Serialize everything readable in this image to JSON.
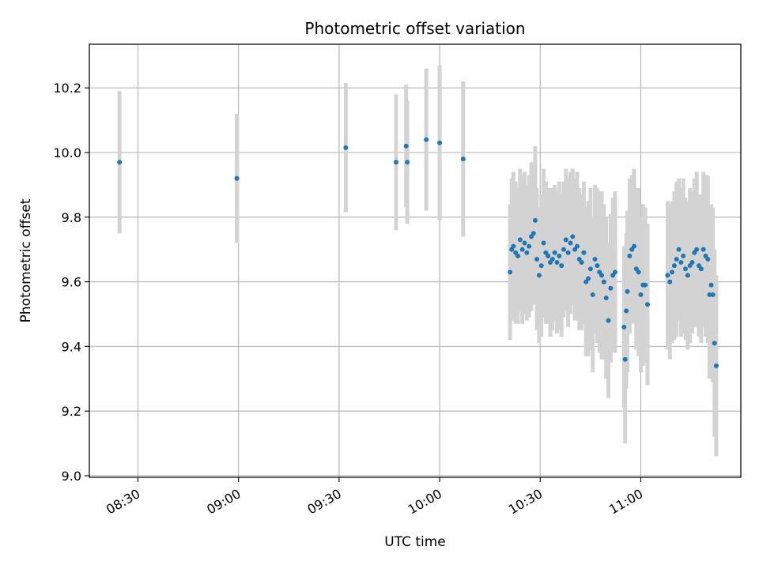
{
  "chart_data": {
    "type": "scatter",
    "title": "Photometric offset variation",
    "xlabel": "UTC time",
    "ylabel": "Photometric offset",
    "x_ticks": [
      "08:30",
      "09:00",
      "09:30",
      "10:00",
      "10:30",
      "11:00"
    ],
    "y_ticks": [
      "9.0",
      "9.2",
      "9.4",
      "9.6",
      "9.8",
      "10.0",
      "10.2"
    ],
    "xlim": [
      "08:15:30",
      "11:29:50"
    ],
    "ylim": [
      8.995,
      10.335
    ],
    "grid": true,
    "colors": {
      "points": "#1f77b4",
      "errorbars": "#d3d3d3",
      "grid": "#b0b0b0"
    },
    "series": [
      {
        "x": [
          "08:24:30",
          "08:59:30",
          "09:32:00",
          "09:47:00",
          "09:50:00",
          "09:50:20",
          "09:56:00",
          "10:00:00",
          "10:07:00",
          "10:21:00",
          "10:21:30",
          "10:22:00",
          "10:22:40",
          "10:23:20",
          "10:24:00",
          "10:24:40",
          "10:25:20",
          "10:26:00",
          "10:26:40",
          "10:27:20",
          "10:28:00",
          "10:28:30",
          "10:29:00",
          "10:29:40",
          "10:30:20",
          "10:31:00",
          "10:31:40",
          "10:32:20",
          "10:33:00",
          "10:33:40",
          "10:34:20",
          "10:35:00",
          "10:35:40",
          "10:36:20",
          "10:37:00",
          "10:37:40",
          "10:38:20",
          "10:39:00",
          "10:39:40",
          "10:40:20",
          "10:41:00",
          "10:41:40",
          "10:42:20",
          "10:43:00",
          "10:43:40",
          "10:44:20",
          "10:45:00",
          "10:45:40",
          "10:46:20",
          "10:47:00",
          "10:47:40",
          "10:48:20",
          "10:49:00",
          "10:49:40",
          "10:50:20",
          "10:51:00",
          "10:51:40",
          "10:52:20",
          "10:55:00",
          "10:55:20",
          "10:55:40",
          "10:56:00",
          "10:56:40",
          "10:57:20",
          "10:58:00",
          "10:58:40",
          "10:59:20",
          "11:00:00",
          "11:00:40",
          "11:01:20",
          "11:02:00",
          "11:08:00",
          "11:08:40",
          "11:09:20",
          "11:10:00",
          "11:10:40",
          "11:11:20",
          "11:12:00",
          "11:12:40",
          "11:13:20",
          "11:14:00",
          "11:14:40",
          "11:15:20",
          "11:16:00",
          "11:16:40",
          "11:17:20",
          "11:18:00",
          "11:18:40",
          "11:19:20",
          "11:20:00",
          "11:20:30",
          "11:21:00",
          "11:21:30",
          "11:22:00",
          "11:22:30"
        ],
        "y": [
          9.97,
          9.92,
          10.015,
          9.97,
          10.02,
          9.97,
          10.04,
          10.03,
          9.98,
          9.63,
          9.7,
          9.71,
          9.69,
          9.68,
          9.73,
          9.7,
          9.72,
          9.69,
          9.71,
          9.74,
          9.75,
          9.79,
          9.67,
          9.62,
          9.65,
          9.72,
          9.69,
          9.68,
          9.66,
          9.67,
          9.69,
          9.66,
          9.68,
          9.65,
          9.7,
          9.73,
          9.69,
          9.72,
          9.74,
          9.7,
          9.71,
          9.67,
          9.66,
          9.69,
          9.6,
          9.61,
          9.64,
          9.56,
          9.67,
          9.65,
          9.63,
          9.62,
          9.6,
          9.55,
          9.48,
          9.58,
          9.62,
          9.63,
          9.46,
          9.36,
          9.51,
          9.57,
          9.68,
          9.7,
          9.71,
          9.64,
          9.63,
          9.56,
          9.59,
          9.59,
          9.53,
          9.62,
          9.6,
          9.63,
          9.65,
          9.67,
          9.7,
          9.66,
          9.68,
          9.64,
          9.62,
          9.65,
          9.66,
          9.69,
          9.7,
          9.65,
          9.64,
          9.7,
          9.68,
          9.67,
          9.56,
          9.59,
          9.56,
          9.41,
          9.34
        ],
        "yerr": [
          0.22,
          0.2,
          0.2,
          0.21,
          0.19,
          0.19,
          0.22,
          0.24,
          0.24,
          0.21,
          0.22,
          0.23,
          0.22,
          0.21,
          0.22,
          0.23,
          0.22,
          0.21,
          0.22,
          0.23,
          0.22,
          0.23,
          0.22,
          0.21,
          0.22,
          0.23,
          0.22,
          0.21,
          0.23,
          0.22,
          0.21,
          0.22,
          0.23,
          0.22,
          0.21,
          0.22,
          0.23,
          0.22,
          0.21,
          0.22,
          0.23,
          0.22,
          0.21,
          0.22,
          0.23,
          0.24,
          0.25,
          0.24,
          0.23,
          0.24,
          0.25,
          0.26,
          0.24,
          0.25,
          0.24,
          0.23,
          0.24,
          0.25,
          0.25,
          0.26,
          0.24,
          0.25,
          0.24,
          0.23,
          0.24,
          0.25,
          0.26,
          0.24,
          0.25,
          0.24,
          0.25,
          0.23,
          0.24,
          0.22,
          0.23,
          0.24,
          0.22,
          0.23,
          0.24,
          0.22,
          0.23,
          0.24,
          0.22,
          0.23,
          0.24,
          0.22,
          0.23,
          0.24,
          0.25,
          0.26,
          0.26,
          0.25,
          0.27,
          0.29,
          0.28
        ]
      }
    ]
  }
}
